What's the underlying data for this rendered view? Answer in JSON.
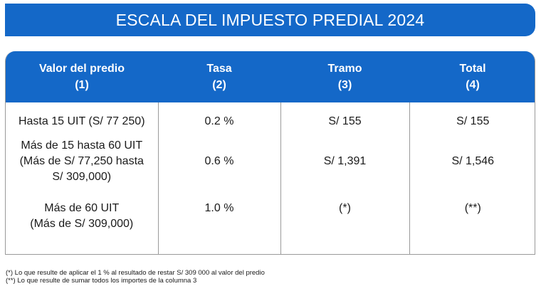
{
  "title": "ESCALA DEL IMPUESTO PREDIAL 2024",
  "table": {
    "headers": [
      {
        "label": "Valor del predio",
        "num": "(1)"
      },
      {
        "label": "Tasa",
        "num": "(2)"
      },
      {
        "label": "Tramo",
        "num": "(3)"
      },
      {
        "label": "Total",
        "num": "(4)"
      }
    ],
    "rows": [
      {
        "valor": [
          "Hasta 15 UIT (S/ 77 250)"
        ],
        "tasa": "0.2 %",
        "tramo": "S/ 155",
        "total": "S/ 155"
      },
      {
        "valor": [
          "Más de 15 hasta 60 UIT",
          "(Más de S/ 77,250 hasta",
          "S/ 309,000)"
        ],
        "tasa": "0.6 %",
        "tramo": "S/ 1,391",
        "total": "S/ 1,546"
      },
      {
        "valor": [
          "Más de 60 UIT",
          "(Más de S/ 309,000)"
        ],
        "tasa": "1.0 %",
        "tramo": "(*)",
        "total": "(**)"
      }
    ]
  },
  "footnotes": [
    "(*) Lo que resulte de aplicar el 1 % al resultado de restar S/ 309 000 al valor del predio",
    "(**) Lo que resulte de sumar todos los importes de la columna 3"
  ],
  "colors": {
    "accent": "#1468c8",
    "border": "#9a9a9a"
  }
}
